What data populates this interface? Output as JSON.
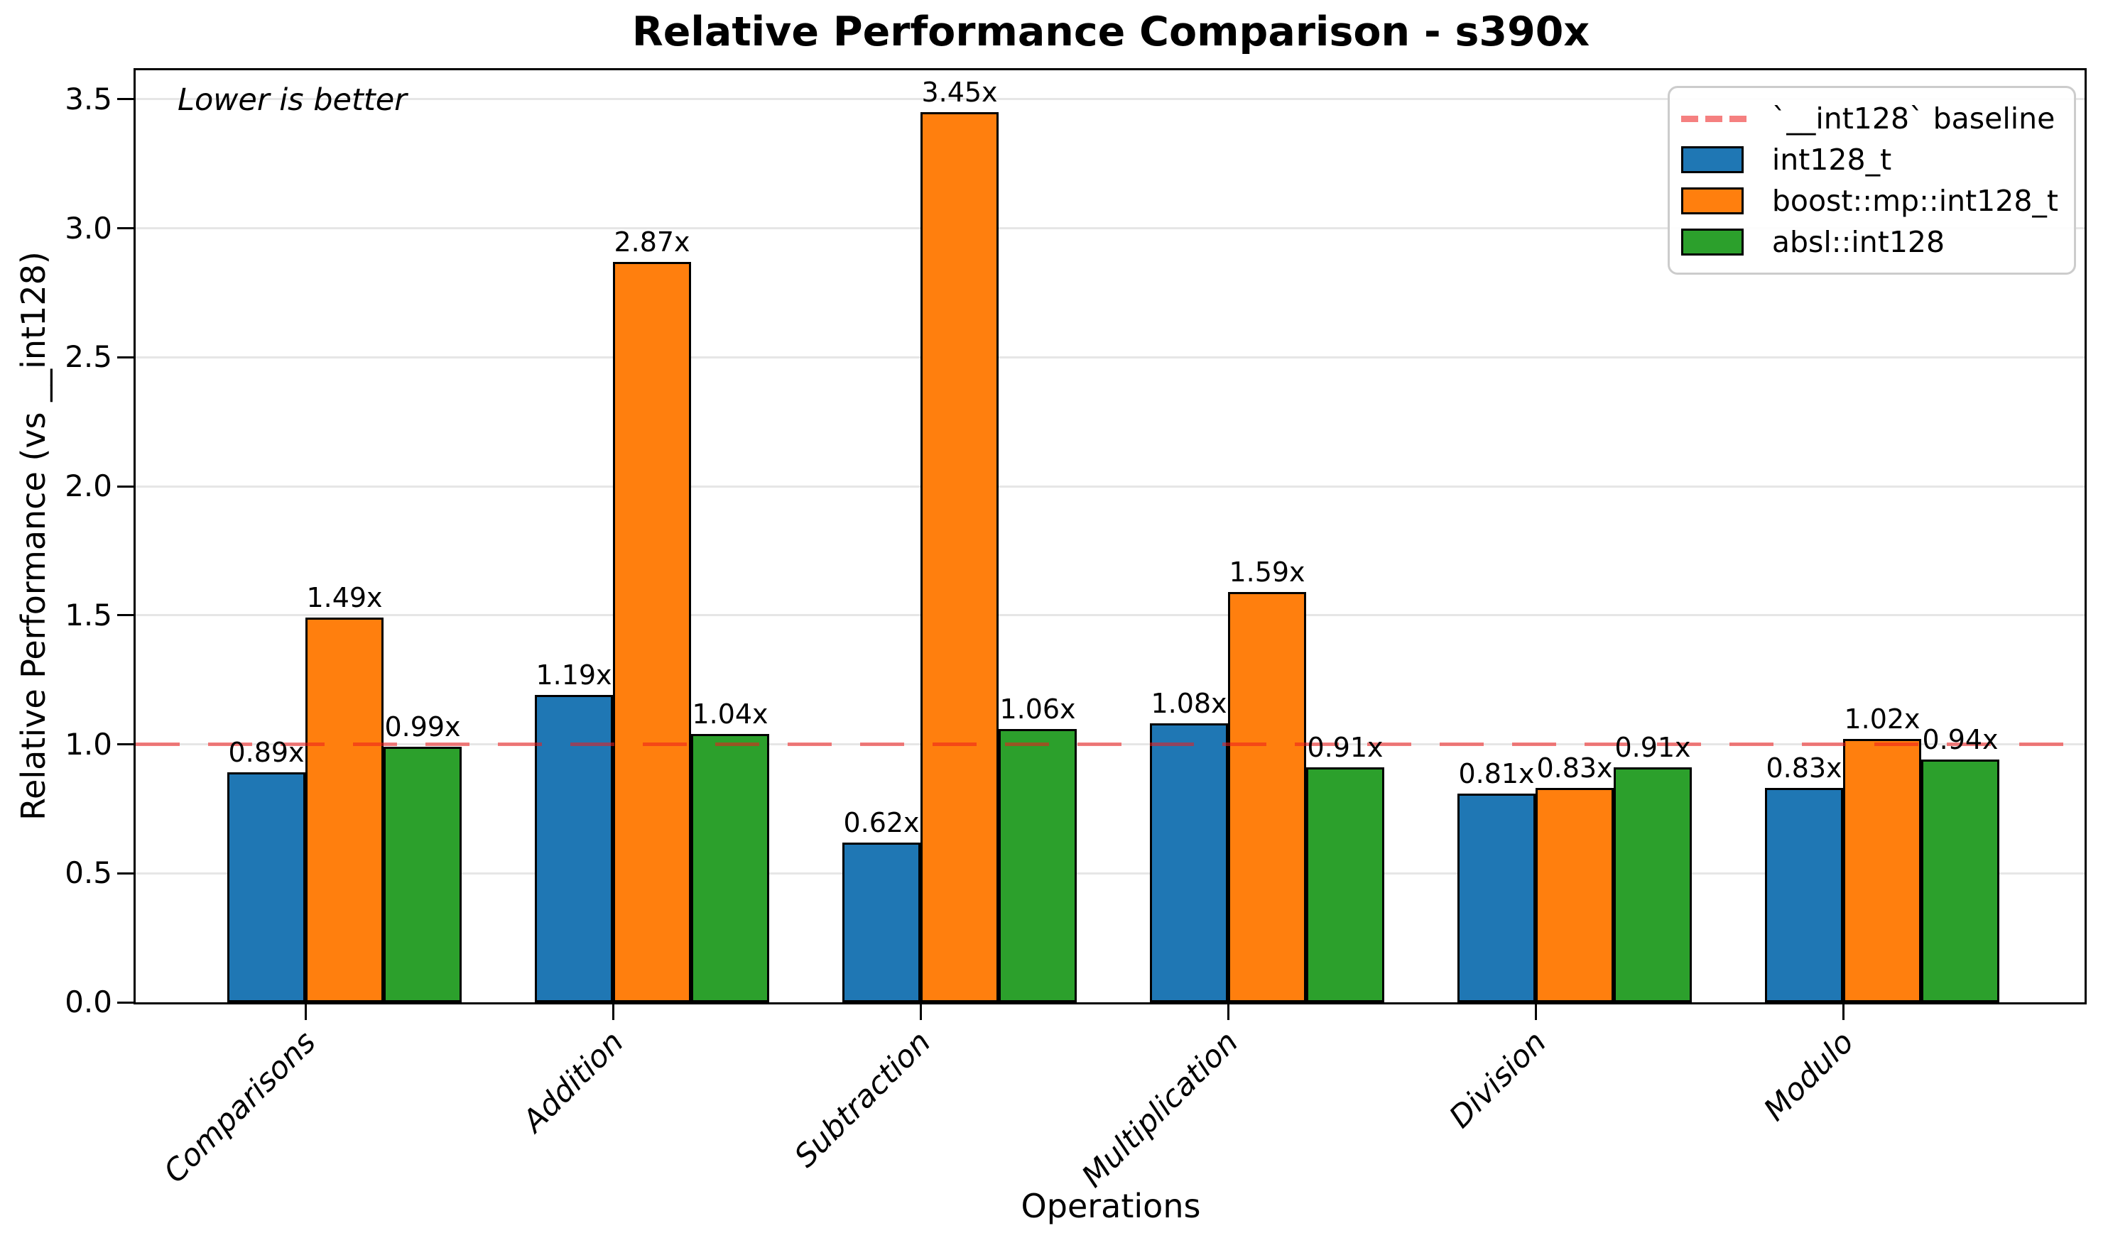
{
  "chart_data": {
    "type": "bar",
    "title": "Relative Performance Comparison - s390x",
    "xlabel": "Operations",
    "ylabel": "Relative Performance (vs __int128)",
    "annotation": "Lower is better",
    "categories": [
      "Comparisons",
      "Addition",
      "Subtraction",
      "Multiplication",
      "Division",
      "Modulo"
    ],
    "series": [
      {
        "name": "int128_t",
        "color": "#1f77b4",
        "values": [
          0.89,
          1.19,
          0.62,
          1.08,
          0.81,
          0.83
        ],
        "labels": [
          "0.89x",
          "1.19x",
          "0.62x",
          "1.08x",
          "0.81x",
          "0.83x"
        ]
      },
      {
        "name": "boost::mp::int128_t",
        "color": "#ff7f0e",
        "values": [
          1.49,
          2.87,
          3.45,
          1.59,
          0.83,
          1.02
        ],
        "labels": [
          "1.49x",
          "2.87x",
          "3.45x",
          "1.59x",
          "0.83x",
          "1.02x"
        ]
      },
      {
        "name": "absl::int128",
        "color": "#2ca02c",
        "values": [
          0.99,
          1.04,
          1.06,
          0.91,
          0.91,
          0.94
        ],
        "labels": [
          "0.99x",
          "1.04x",
          "1.06x",
          "0.91x",
          "0.91x",
          "0.94x"
        ]
      }
    ],
    "baseline": {
      "value": 1.0,
      "label": "`__int128` baseline",
      "color": "#ed1c1c",
      "opacity": 0.56
    },
    "yticks": [
      "0.0",
      "0.5",
      "1.0",
      "1.5",
      "2.0",
      "2.5",
      "3.0",
      "3.5"
    ],
    "ylim": [
      0,
      3.6
    ],
    "grid": true,
    "grid_color": "#e6e6e6",
    "legend_position": "upper right"
  }
}
